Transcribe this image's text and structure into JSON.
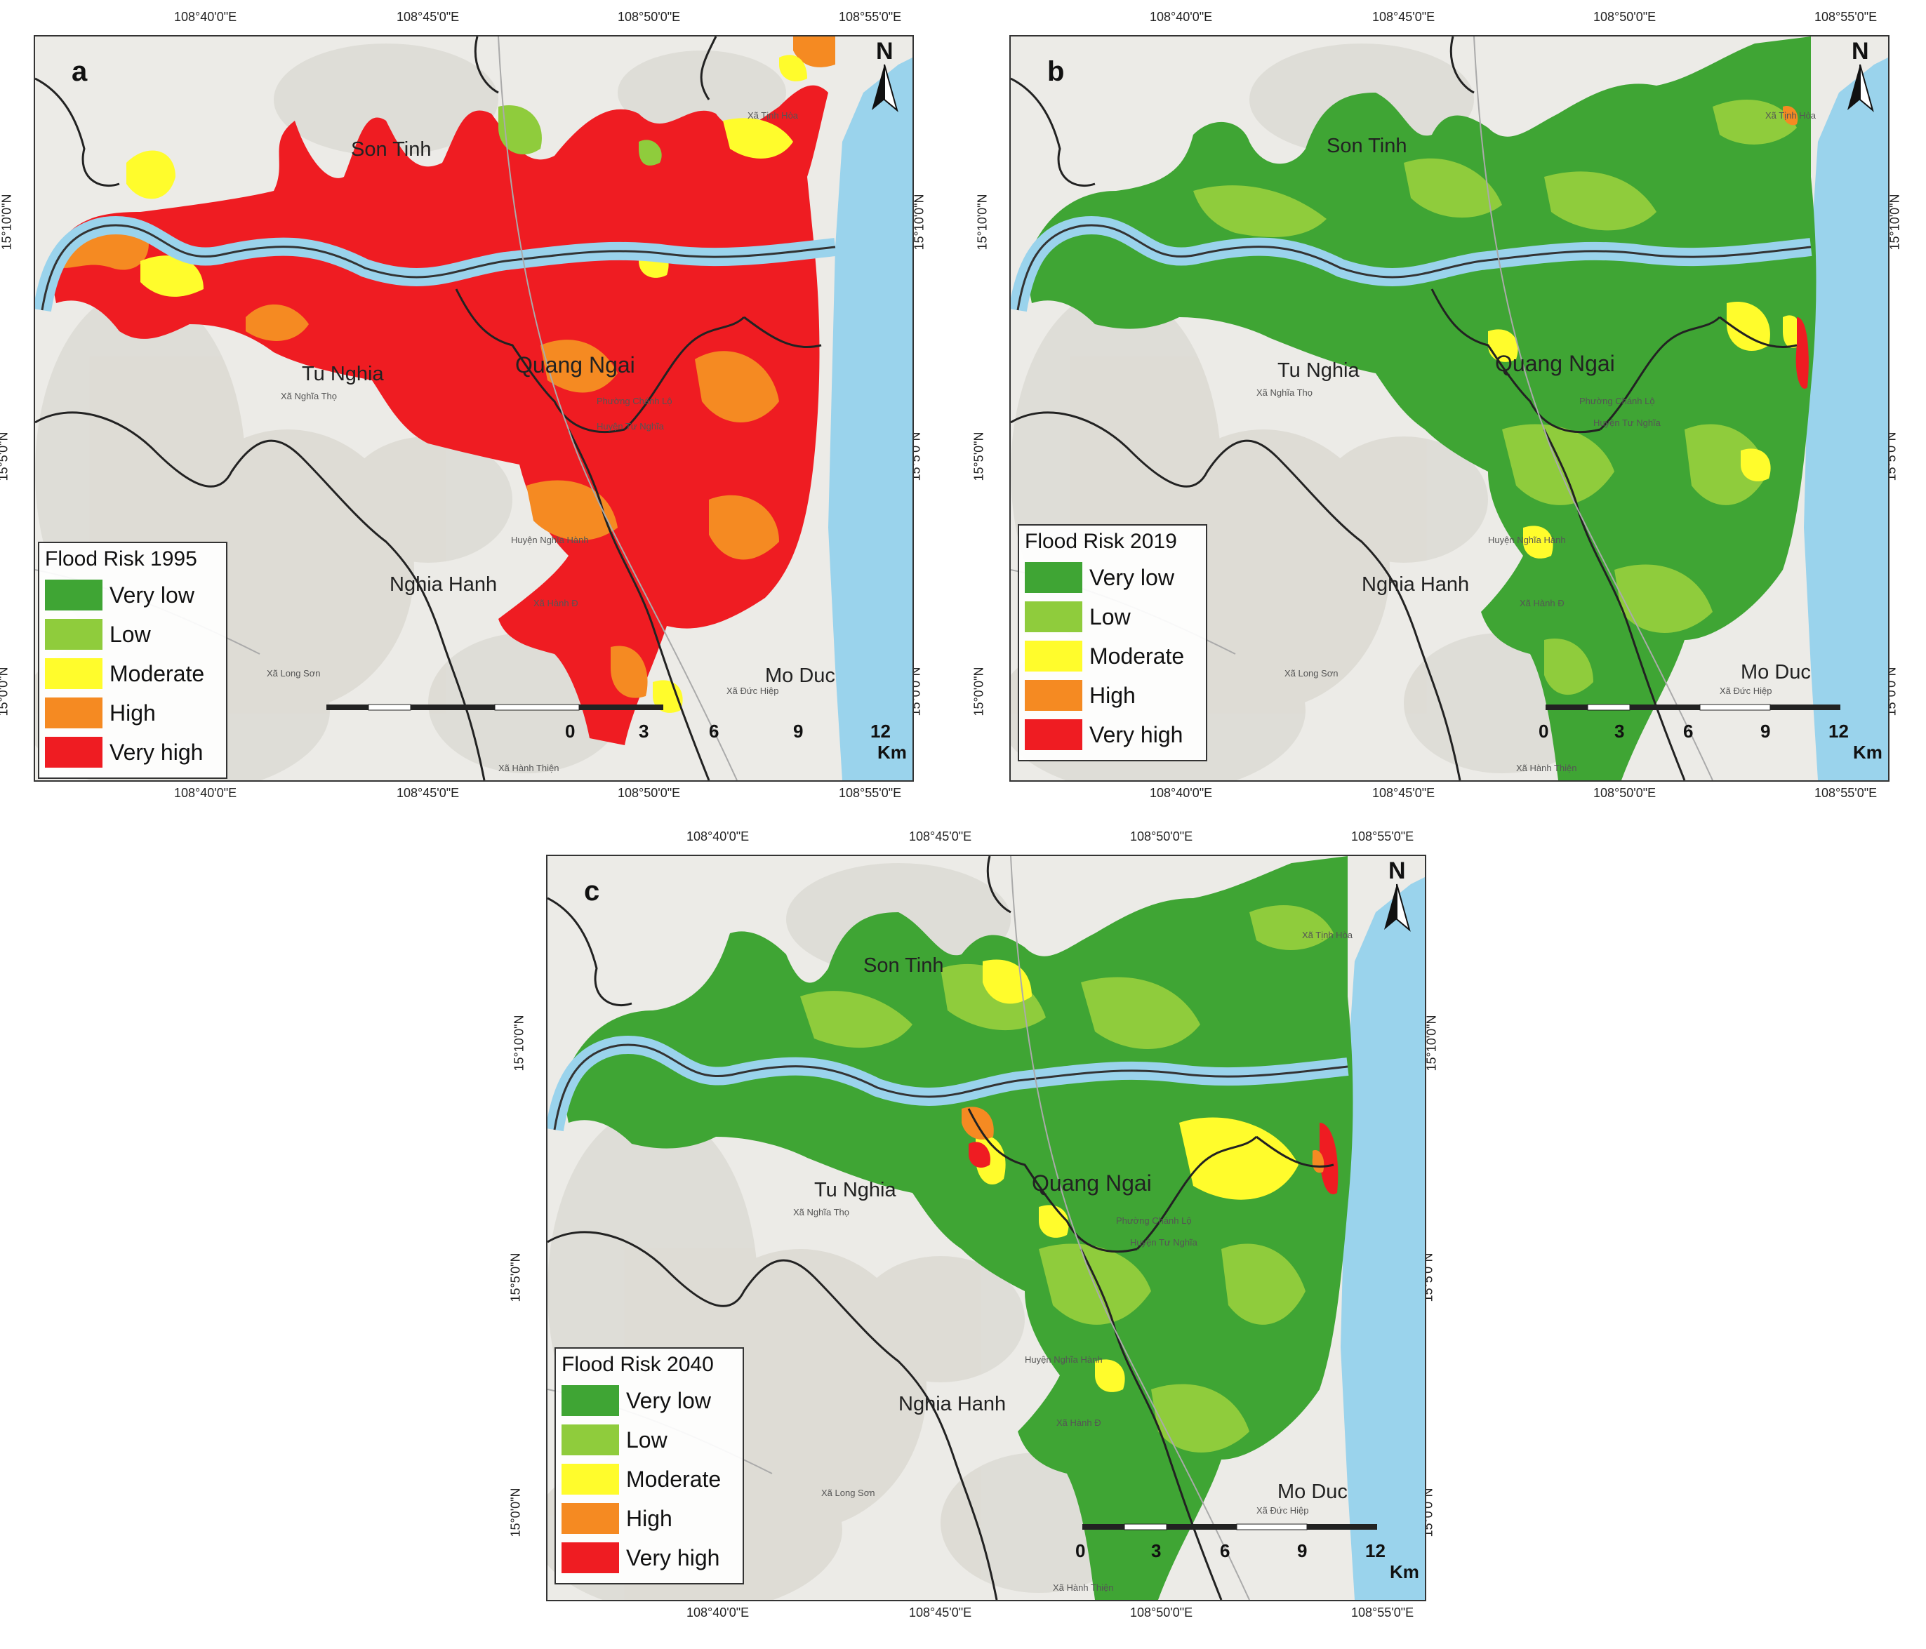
{
  "colors": {
    "very_low": "#3fa534",
    "low": "#8fcc3c",
    "moderate": "#fffc2c",
    "high": "#f58a22",
    "very_high": "#ef1c22",
    "water": "#9ad3ec",
    "land": "#ececea",
    "relief": "#dedcd6",
    "boundary": "#222222"
  },
  "risk_classes": [
    "Very low",
    "Low",
    "Moderate",
    "High",
    "Very high"
  ],
  "coords": {
    "top_lon": [
      "108°40'0\"E",
      "108°45'0\"E",
      "108°50'0\"E",
      "108°55'0\"E"
    ],
    "bottom_lon": [
      "108°40'0\"E",
      "108°45'0\"E",
      "108°50'0\"E",
      "108°55'0\"E"
    ],
    "lat": [
      "15°10'0\"N",
      "15°5'0\"N",
      "15°0'0\"N"
    ]
  },
  "places": {
    "son_tinh": "Son Tinh",
    "tu_nghia": "Tu Nghia",
    "quang_ngai": "Quang Ngai",
    "nghia_hanh": "Nghia Hanh",
    "mo_duc": "Mo Duc",
    "huyen_tu_nghia": "Huyện Tư Nghĩa",
    "huyen_nghia_hanh": "Huyện Nghĩa Hành",
    "xa_nghia_tho": "Xã Nghĩa Thọ",
    "xa_long_son": "Xã Long Sơn",
    "xa_hanh_thien": "Xã Hành Thiện",
    "xa_duc_hiep": "Xã Đức Hiệp",
    "xa_tinh_hoa": "Xã Tịnh Hòa",
    "xa_hanh_d": "Xã Hành Đ",
    "pho": "Phổ",
    "phuong_chanh_lo": "Phường Chánh Lộ",
    "phuong_le_loi": "Phường Lê Lợi",
    "phuong_quang_phu": "Phường Quảng Phú"
  },
  "scale": {
    "ticks": [
      "0",
      "3",
      "6",
      "9",
      "12"
    ],
    "unit": "Km"
  },
  "north_label": "N",
  "panels": [
    {
      "letter": "a",
      "legend_title": "Flood Risk 1995",
      "dominant": "very_high"
    },
    {
      "letter": "b",
      "legend_title": "Flood Risk 2019",
      "dominant": "very_low"
    },
    {
      "letter": "c",
      "legend_title": "Flood Risk 2040",
      "dominant": "very_low"
    }
  ]
}
